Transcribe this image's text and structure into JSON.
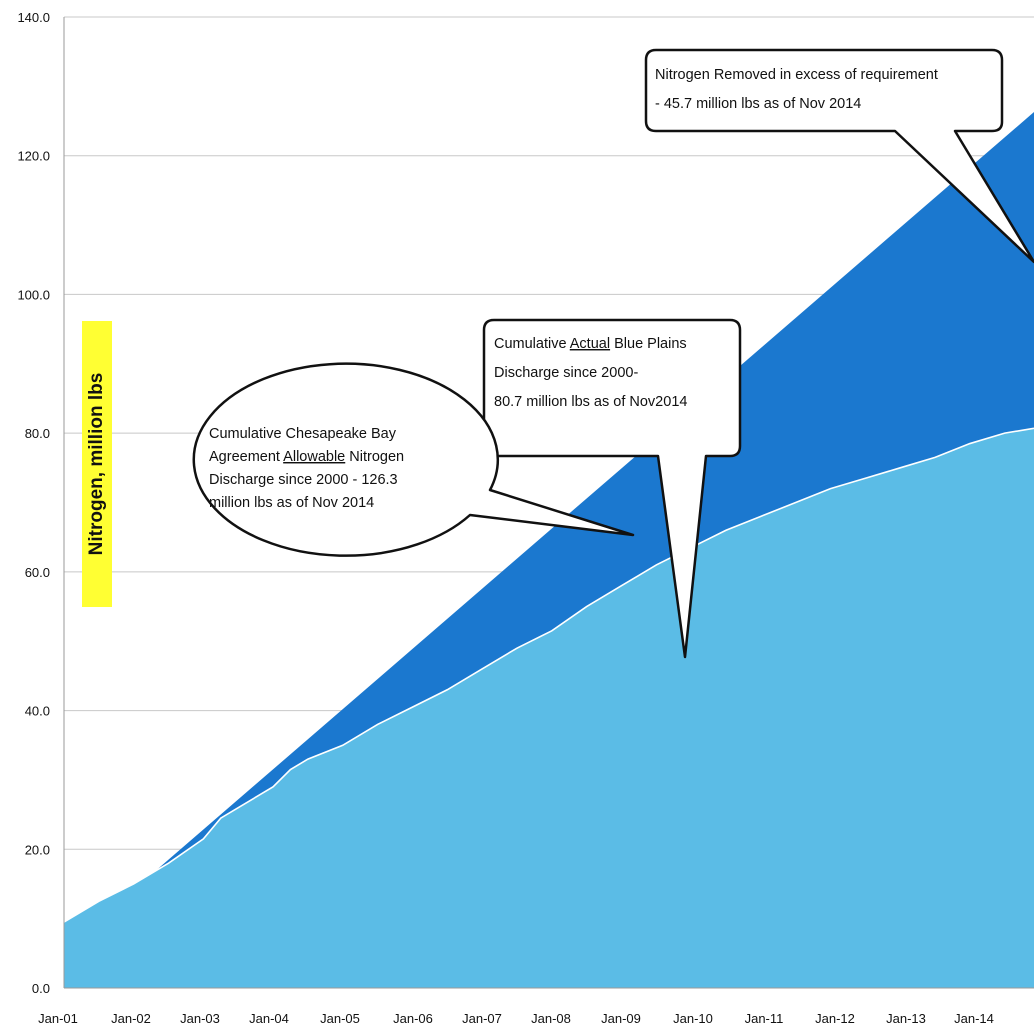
{
  "chart_data": {
    "type": "area",
    "ylabel": "Nitrogen, million lbs",
    "ylim": [
      0,
      140
    ],
    "yticks": [
      "0.0",
      "20.0",
      "40.0",
      "60.0",
      "80.0",
      "100.0",
      "120.0",
      "140.0"
    ],
    "grid": true,
    "x_tick_labels": [
      "Jan-01",
      "Jan-02",
      "Jan-03",
      "Jan-04",
      "Jan-05",
      "Jan-06",
      "Jan-07",
      "Jan-08",
      "Jan-09",
      "Jan-10",
      "Jan-11",
      "Jan-12",
      "Jan-13",
      "Jan-14"
    ],
    "x_start": 2001.0,
    "x_end": 2014.92,
    "series": [
      {
        "id": "allowable",
        "color": "#1b78cf",
        "x": [
          2001.75,
          2014.92
        ],
        "values": [
          12.0,
          126.3
        ]
      },
      {
        "id": "actual",
        "color": "#5bbce6",
        "x": [
          2001.0,
          2001.25,
          2001.5,
          2002.0,
          2002.5,
          2003.0,
          2003.25,
          2003.5,
          2004.0,
          2004.25,
          2004.5,
          2005.0,
          2005.5,
          2006.0,
          2006.5,
          2007.0,
          2007.5,
          2008.0,
          2008.5,
          2009.0,
          2009.5,
          2010.0,
          2010.5,
          2011.0,
          2011.5,
          2012.0,
          2012.5,
          2013.0,
          2013.5,
          2014.0,
          2014.5,
          2014.92
        ],
        "values": [
          9.5,
          11.0,
          12.5,
          15.0,
          18.0,
          21.5,
          24.5,
          26.0,
          29.0,
          31.5,
          33.0,
          35.0,
          38.0,
          40.5,
          43.0,
          46.0,
          49.0,
          51.5,
          55.0,
          58.0,
          61.0,
          63.5,
          66.0,
          68.0,
          70.0,
          72.0,
          73.5,
          75.0,
          76.5,
          78.5,
          80.0,
          80.7
        ]
      }
    ],
    "annotations": [
      {
        "id": "removed",
        "lines": [
          "Nitrogen Removed in excess of requirement",
          "-  45.7 million lbs as of Nov 2014"
        ]
      },
      {
        "id": "actual",
        "lines": [
          "Cumulative Actual Blue Plains",
          "Discharge since 2000-",
          "80.7 million lbs as of Nov2014"
        ],
        "underlined_word": "Actual"
      },
      {
        "id": "allowable",
        "lines": [
          "Cumulative Chesapeake Bay",
          "Agreement Allowable Nitrogen",
          "Discharge since 2000 - 126.3",
          "million lbs as of Nov 2014"
        ],
        "underlined_word": "Allowable"
      }
    ]
  }
}
